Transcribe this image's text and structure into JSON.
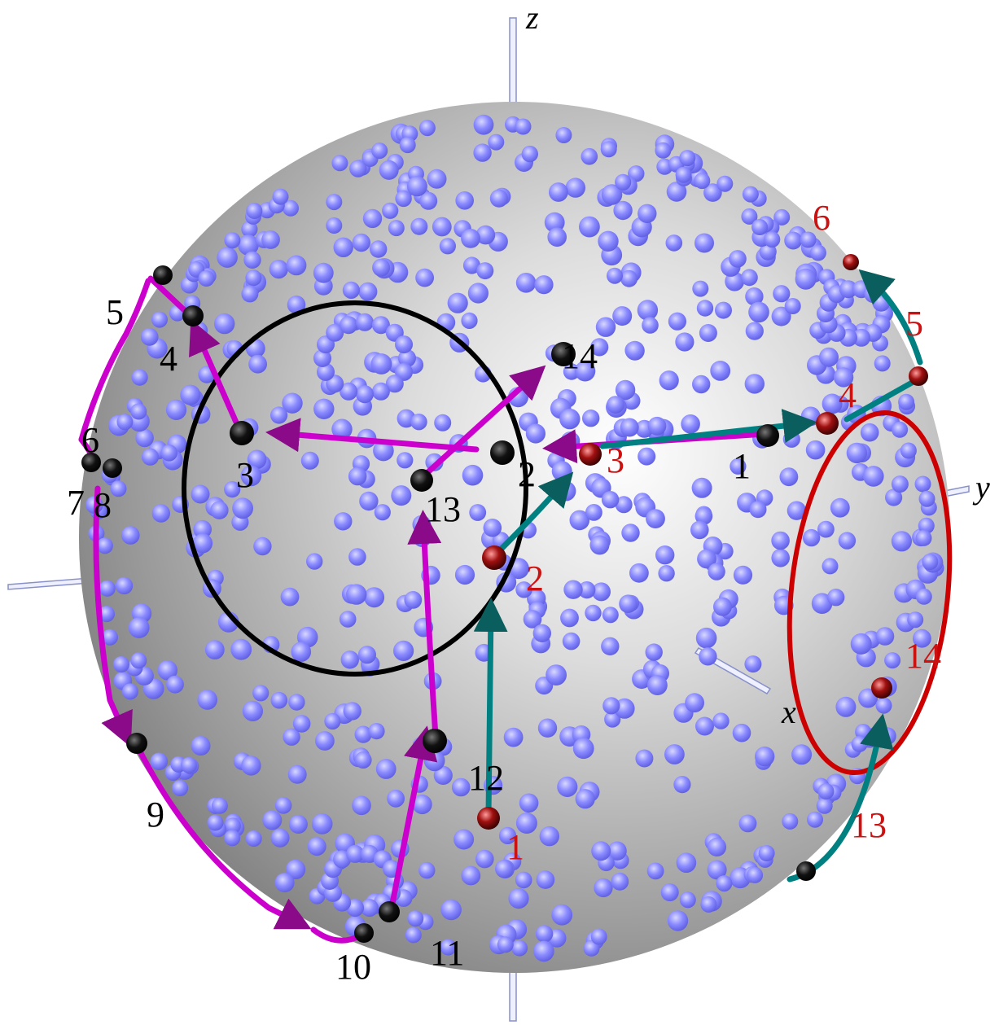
{
  "axes": {
    "x": "x",
    "y": "y",
    "z": "z"
  },
  "colors": {
    "magenta_path": "#cc00cc",
    "teal_path": "#008080",
    "black_circle": "#000000",
    "red_circle": "#cc0000",
    "sample_point": "#8080ff",
    "black_node": "#111111",
    "red_node": "#8b0000",
    "black_label": "#000000",
    "red_label": "#cc1111"
  },
  "black_labels": [
    "1",
    "2",
    "3",
    "4",
    "5",
    "6",
    "7",
    "8",
    "9",
    "10",
    "11",
    "12",
    "13",
    "14"
  ],
  "red_labels": [
    "1",
    "2",
    "3",
    "4",
    "5",
    "6",
    "13",
    "14"
  ]
}
